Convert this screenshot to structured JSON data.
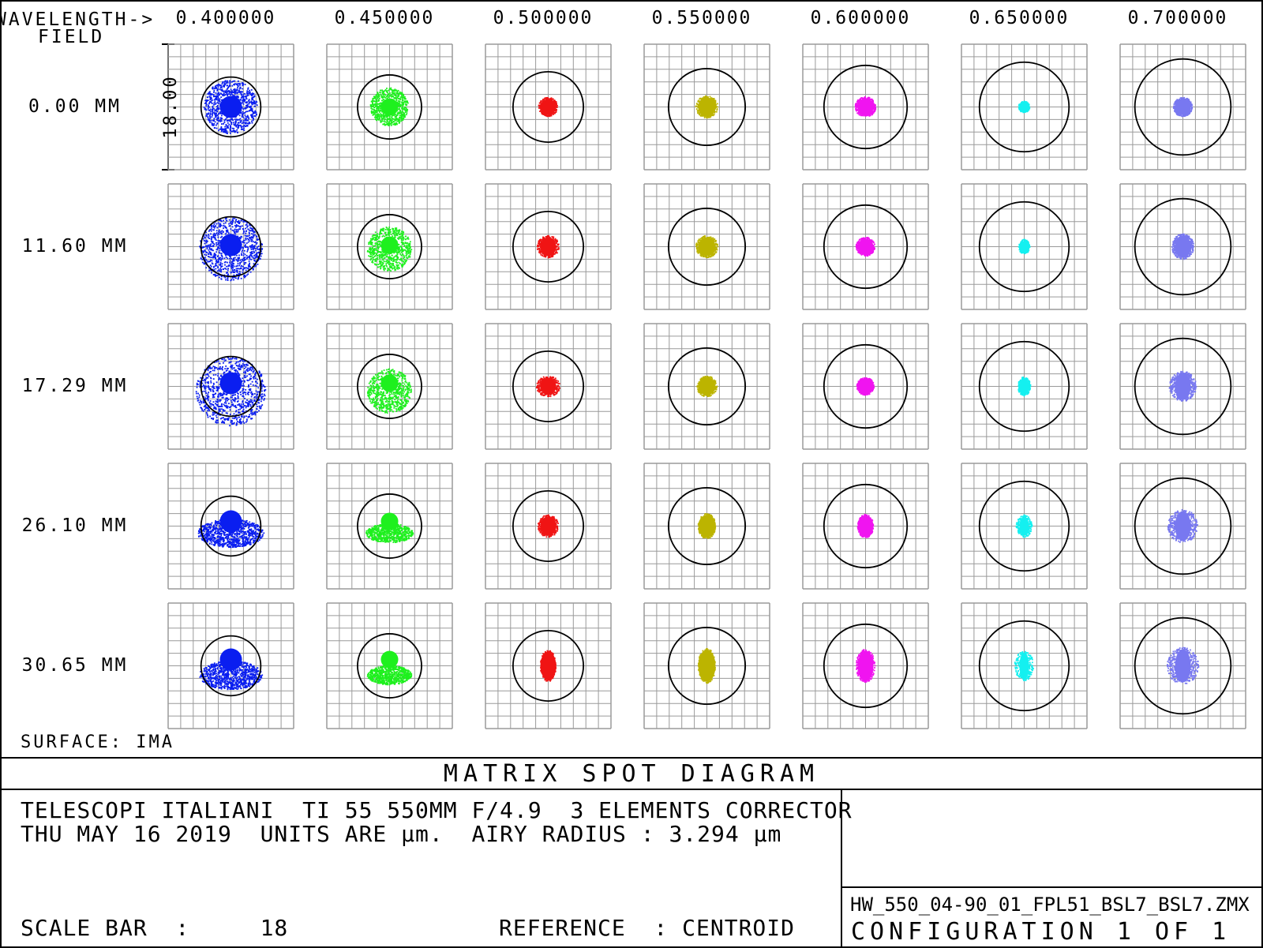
{
  "header": {
    "wavelength_label": "WAVELENGTH->",
    "field_label": "FIELD"
  },
  "wavelengths": [
    "0.400000",
    "0.450000",
    "0.500000",
    "0.550000",
    "0.600000",
    "0.650000",
    "0.700000"
  ],
  "fields": [
    "0.00 MM",
    "11.60 MM",
    "17.29 MM",
    "26.10 MM",
    "30.65 MM"
  ],
  "scale_label": "18.00",
  "colors": [
    "#0a1ef0",
    "#1ef01e",
    "#f01414",
    "#bcb400",
    "#f014f0",
    "#14f0f0",
    "#7878f0"
  ],
  "airy_radius_factor": [
    0.28,
    0.3,
    0.33,
    0.36,
    0.39,
    0.42,
    0.45
  ],
  "surface_label": "SURFACE: IMA",
  "title": "MATRIX SPOT DIAGRAM",
  "info": {
    "line1": "TELESCOPI ITALIANI  TI 55 550MM F/4.9  3 ELEMENTS CORRECTOR",
    "line2": "THU MAY 16 2019  UNITS ARE µm.  AIRY RADIUS : 3.294 µm",
    "scale_bar": "SCALE BAR  :     18",
    "reference": "REFERENCE  : CENTROID"
  },
  "file": {
    "name": "HW_550_04-90_01_FPL51_BSL7_BSL7.ZMX",
    "config": "CONFIGURATION 1 OF 1"
  }
}
